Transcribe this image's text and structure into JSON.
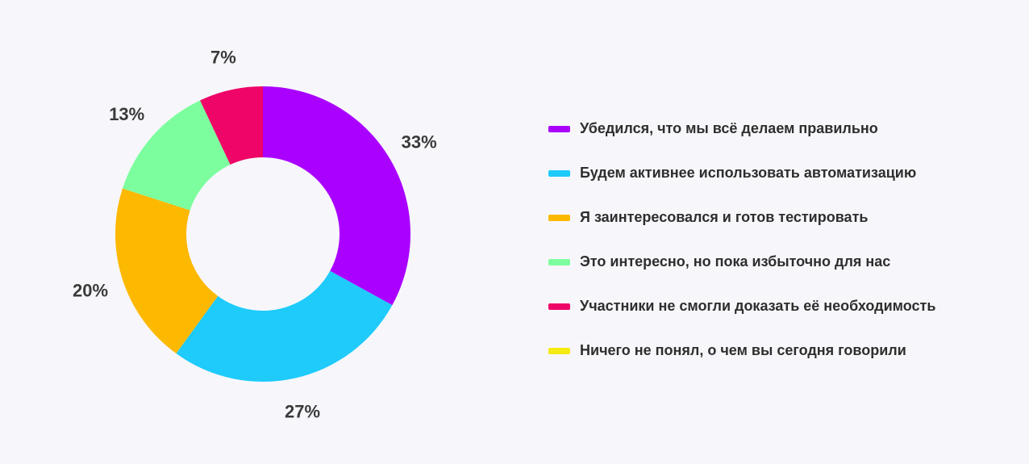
{
  "chart_data": {
    "type": "pie",
    "variant": "donut",
    "title": "",
    "slices": [
      {
        "label": "Убедился, что мы всё делаем правильно",
        "value": 33,
        "value_label": "33%",
        "color": "#aa00ff"
      },
      {
        "label": "Будем активнее использовать автоматизацию",
        "value": 27,
        "value_label": "27%",
        "color": "#1ecbfb"
      },
      {
        "label": "Я заинтересовался и готов тестировать",
        "value": 20,
        "value_label": "20%",
        "color": "#fdb800"
      },
      {
        "label": "Это интересно, но пока избыточно для нас",
        "value": 13,
        "value_label": "13%",
        "color": "#7dfe9e"
      },
      {
        "label": "Участники не смогли доказать её необходимость",
        "value": 7,
        "value_label": "7%",
        "color": "#ef0467"
      },
      {
        "label": "Ничего не понял, о чем вы сегодня говорили",
        "value": 0,
        "value_label": "",
        "color": "#f5ea12"
      }
    ],
    "legend_position": "right"
  }
}
